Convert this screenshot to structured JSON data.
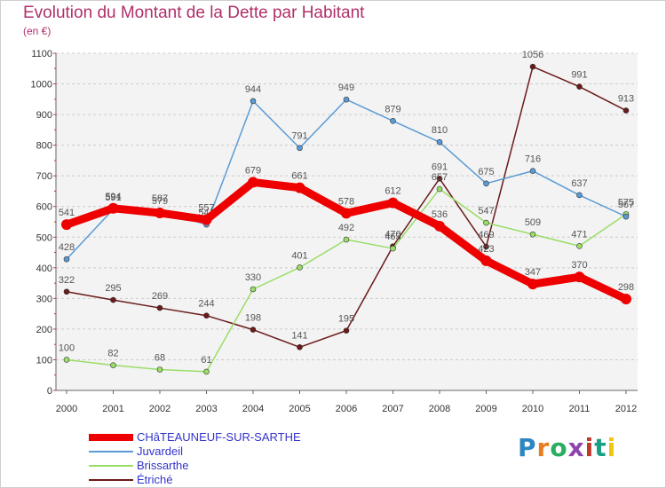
{
  "header": {
    "title": "Evolution du Montant de la Dette par Habitant",
    "unit": "(en €)"
  },
  "brand": {
    "letters": [
      {
        "ch": "P",
        "color": "#2e86c1"
      },
      {
        "ch": "r",
        "color": "#e67e22"
      },
      {
        "ch": "o",
        "color": "#27ae60"
      },
      {
        "ch": "x",
        "color": "#8e44ad"
      },
      {
        "ch": "i",
        "color": "#c0392b"
      },
      {
        "ch": "t",
        "color": "#16a085"
      },
      {
        "ch": "i",
        "color": "#f1c40f"
      }
    ]
  },
  "chart_data": {
    "type": "line",
    "title": "Evolution du Montant de la Dette par Habitant",
    "ylabel": "(en €)",
    "xlabel": "",
    "x": [
      2000,
      2001,
      2002,
      2003,
      2004,
      2005,
      2006,
      2007,
      2008,
      2009,
      2010,
      2011,
      2012
    ],
    "ylim": [
      0,
      1100
    ],
    "yticks": [
      0,
      100,
      200,
      300,
      400,
      500,
      600,
      700,
      800,
      900,
      1000,
      1100
    ],
    "grid": "horizontal dashed",
    "legend_position": "bottom-left",
    "series": [
      {
        "name": "Étriché",
        "color": "#6b1a1a",
        "values": [
          322,
          295,
          269,
          244,
          198,
          141,
          195,
          470,
          691,
          469,
          1056,
          991,
          913
        ]
      },
      {
        "name": "Brissarthe",
        "color": "#99dd66",
        "values": [
          100,
          82,
          68,
          61,
          330,
          401,
          492,
          463,
          657,
          547,
          509,
          471,
          575
        ]
      },
      {
        "name": "Juvardeil",
        "color": "#5b9bd5",
        "values": [
          428,
          591,
          587,
          541,
          944,
          791,
          949,
          879,
          810,
          675,
          716,
          637,
          567
        ]
      },
      {
        "name": "CHâTEAUNEUF-SUR-SARTHE",
        "color": "#ee0000",
        "values": [
          541,
          594,
          579,
          557,
          679,
          661,
          578,
          612,
          536,
          423,
          347,
          370,
          298
        ]
      }
    ]
  }
}
